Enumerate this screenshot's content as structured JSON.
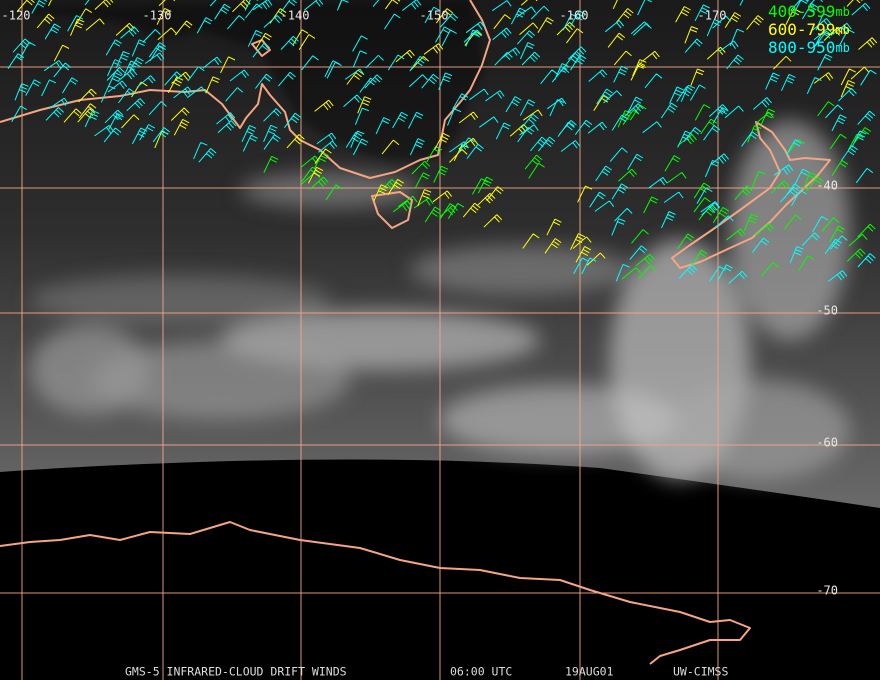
{
  "map": {
    "longitude_labels": [
      "-120",
      "-130",
      "-140",
      "-150",
      "-160",
      "-170"
    ],
    "latitude_labels": [
      "-40",
      "-50",
      "-60",
      "-70"
    ],
    "legend": [
      {
        "label": "400-599",
        "unit": "mb",
        "color": "#00ff00"
      },
      {
        "label": "600-799",
        "unit": "mb",
        "color": "#ffff00"
      },
      {
        "label": "800-950",
        "unit": "mb",
        "color": "#00ffff"
      }
    ],
    "footer": [
      "GMS-5 INFRARED-CLOUD DRIFT WINDS",
      "06:00 UTC",
      "19AUG01",
      "UW-CIMSS"
    ]
  }
}
